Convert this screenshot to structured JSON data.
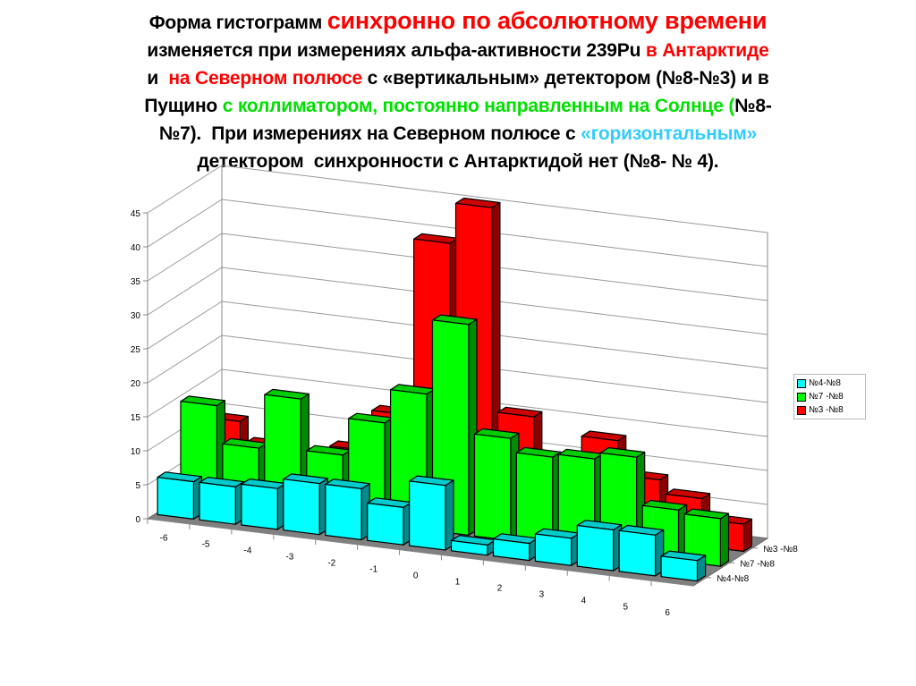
{
  "title": {
    "line1_black": "Форма гистограмм ",
    "line1_red": "синхронно по абсолютному времени",
    "line2_black": "изменяется при измерениях альфа-активности 239Pu ",
    "line2_red": "в Антарктиде",
    "line3_black_a": "и  ",
    "line3_red": "на Северном полюсе",
    "line3_black_b": " с «вертикальным» детектором (№8-№3) и в",
    "line4_black_a": "Пущино ",
    "line4_green": "с коллиматором, постоянно направленным на Солнце (",
    "line4_black_b": "№8-",
    "line5_black_a": "№7).  При измерениях на Северном полюсе с ",
    "line5_cyan": "«горизонтальным»",
    "line6_black": "детектором  синхронности с Антарктидой нет (№8- № 4)."
  },
  "legend": {
    "items": [
      {
        "label": "№4-№8",
        "color": "#00ffff"
      },
      {
        "label": "№7 -№8",
        "color": "#00ff00"
      },
      {
        "label": "№3 -№8",
        "color": "#ff0000"
      }
    ]
  },
  "chart_data": {
    "type": "bar",
    "subtype": "3d-column",
    "title": "",
    "xlabel": "",
    "ylabel": "",
    "categories": [
      "-6",
      "-5",
      "-4",
      "-3",
      "-2",
      "-1",
      "0",
      "1",
      "2",
      "3",
      "4",
      "5",
      "6"
    ],
    "y_ticks": [
      "0",
      "5",
      "10",
      "15",
      "20",
      "25",
      "30",
      "35",
      "40",
      "45"
    ],
    "ylim": [
      0,
      45
    ],
    "grid": true,
    "legend_position": "right",
    "series": [
      {
        "name": "№4-№8",
        "color": "#00ffff",
        "values": [
          5.5,
          5.5,
          6,
          7.5,
          7.5,
          5.5,
          9.5,
          1.5,
          2.5,
          4,
          6,
          6,
          3
        ]
      },
      {
        "name": "№7 -№8",
        "color": "#00ff00",
        "values": [
          14.5,
          9,
          17,
          9.5,
          15,
          20,
          31,
          15,
          13,
          13.5,
          14.5,
          7.5,
          7
        ]
      },
      {
        "name": "№3 -№8",
        "color": "#ff0000",
        "values": [
          10,
          7,
          6,
          8,
          14,
          40,
          46,
          16,
          10,
          14,
          9,
          7,
          4
        ]
      }
    ],
    "depth_labels": [
      "№4-№8",
      "№7 -№8",
      "№3 -№8"
    ]
  }
}
